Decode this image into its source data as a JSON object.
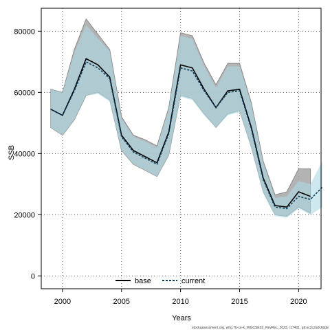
{
  "chart_data": {
    "type": "line",
    "xlabel": "Years",
    "ylabel": "SSB",
    "xlim": [
      1998.2,
      2021.9
    ],
    "ylim": [
      -4200,
      87500
    ],
    "xticks": [
      2000,
      2005,
      2010,
      2015,
      2020
    ],
    "yticks": [
      0,
      20000,
      40000,
      60000,
      80000
    ],
    "grid": true,
    "legend_position": "bottom-center",
    "footnote": "stockassessment.org, whg.7b-ce-k_WGCSE22_RevRec_2023, r17401, git:ec2c2a0c6dde",
    "series": [
      {
        "name": "base",
        "color": "#000000",
        "band_color": "#a6a6a6",
        "x": [
          1999,
          2000,
          2001,
          2002,
          2003,
          2004,
          2005,
          2006,
          2007,
          2008,
          2009,
          2010,
          2011,
          2012,
          2013,
          2014,
          2015,
          2016,
          2017,
          2018,
          2019,
          2020,
          2021
        ],
        "values": [
          54500,
          52500,
          61000,
          71000,
          69000,
          65000,
          46000,
          41000,
          39000,
          37000,
          47000,
          69000,
          68000,
          61000,
          55000,
          60500,
          61000,
          48500,
          32000,
          23000,
          22500,
          27500,
          26000
        ],
        "lower": [
          48500,
          46000,
          51000,
          59000,
          60000,
          57500,
          41000,
          36500,
          34500,
          32500,
          39500,
          59000,
          58000,
          53000,
          48500,
          53000,
          54000,
          42000,
          27500,
          20000,
          19500,
          22500,
          20500
        ],
        "upper": [
          61000,
          60000,
          74000,
          84000,
          79000,
          74000,
          52000,
          46000,
          44500,
          42500,
          55000,
          79500,
          78500,
          69500,
          62500,
          69500,
          69500,
          56500,
          37500,
          26500,
          27500,
          35000,
          35000
        ]
      },
      {
        "name": "current",
        "color": "#0b3d5c",
        "band_color": "#add8e6",
        "x": [
          1999,
          2000,
          2001,
          2002,
          2003,
          2004,
          2005,
          2006,
          2007,
          2008,
          2009,
          2010,
          2011,
          2012,
          2013,
          2014,
          2015,
          2016,
          2017,
          2018,
          2019,
          2020,
          2021,
          2022
        ],
        "values": [
          54500,
          52500,
          60500,
          70000,
          68000,
          64500,
          45500,
          40500,
          38500,
          36500,
          46500,
          68000,
          67000,
          60500,
          55000,
          60000,
          60500,
          48000,
          31500,
          22500,
          22000,
          26000,
          25000,
          29000
        ],
        "lower": [
          48500,
          46000,
          51000,
          59000,
          59500,
          57000,
          41000,
          36500,
          34500,
          32500,
          39500,
          58500,
          57500,
          52500,
          48500,
          52500,
          53500,
          41500,
          27000,
          19500,
          19000,
          22000,
          20000,
          22500
        ],
        "upper": [
          61000,
          60000,
          73000,
          82000,
          77500,
          73500,
          51500,
          45500,
          44000,
          42000,
          54500,
          78500,
          77500,
          68500,
          61500,
          68500,
          68500,
          56000,
          37000,
          25500,
          26000,
          31000,
          30000,
          37500
        ]
      }
    ]
  }
}
